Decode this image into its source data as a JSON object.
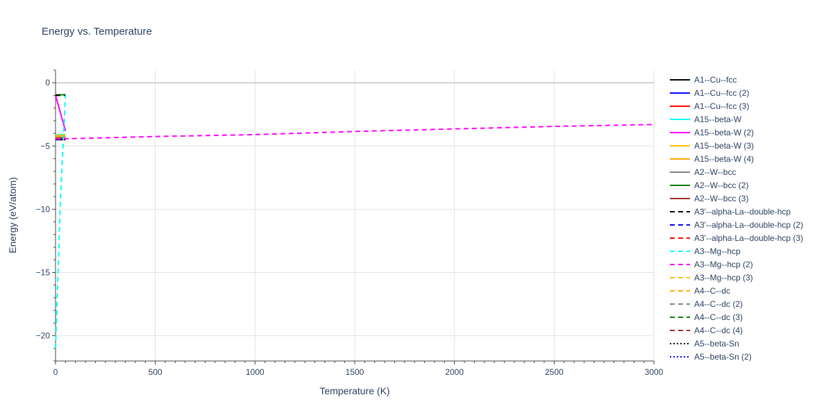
{
  "chart_data": {
    "type": "line",
    "title": "Energy vs. Temperature",
    "xlabel": "Temperature (K)",
    "ylabel": "Energy (eV/atom)",
    "xlim": [
      0,
      3000
    ],
    "ylim": [
      -22,
      1
    ],
    "xticks": [
      0,
      500,
      1000,
      1500,
      2000,
      2500,
      3000
    ],
    "yticks": [
      0,
      -5,
      -10,
      -15,
      -20
    ],
    "grid": true,
    "legend_position": "right",
    "series": [
      {
        "name": "A1--Cu--fcc",
        "color": "#000000",
        "dash": "solid",
        "x": [
          0,
          50
        ],
        "y": [
          -4.5,
          -4.5
        ]
      },
      {
        "name": "A1--Cu--fcc (2)",
        "color": "#0000ff",
        "dash": "solid",
        "x": [
          0,
          50
        ],
        "y": [
          -4.3,
          -4.3
        ]
      },
      {
        "name": "A1--Cu--fcc (3)",
        "color": "#ff0000",
        "dash": "solid",
        "x": [
          0,
          50
        ],
        "y": [
          -4.2,
          -4.2
        ]
      },
      {
        "name": "A15--beta-W",
        "color": "#00ffff",
        "dash": "solid",
        "x": [
          0,
          50
        ],
        "y": [
          -4.1,
          -4.1
        ]
      },
      {
        "name": "A15--beta-W (2)",
        "color": "#ff00ff",
        "dash": "solid",
        "x": [
          0,
          50
        ],
        "y": [
          -1.0,
          -3.8
        ]
      },
      {
        "name": "A15--beta-W (3)",
        "color": "#ffbf00",
        "dash": "solid",
        "x": [
          0,
          50
        ],
        "y": [
          -4.15,
          -4.15
        ]
      },
      {
        "name": "A15--beta-W (4)",
        "color": "#ffa500",
        "dash": "solid",
        "x": [
          0,
          50
        ],
        "y": [
          -4.25,
          -4.25
        ]
      },
      {
        "name": "A2--W--bcc",
        "color": "#808080",
        "dash": "solid",
        "x": [
          0,
          50
        ],
        "y": [
          -4.35,
          -4.35
        ]
      },
      {
        "name": "A2--W--bcc (2)",
        "color": "#008000",
        "dash": "solid",
        "x": [
          0,
          50
        ],
        "y": [
          -0.95,
          -0.95
        ]
      },
      {
        "name": "A2--W--bcc (3)",
        "color": "#a52a2a",
        "dash": "solid",
        "x": [
          0,
          50
        ],
        "y": [
          -4.4,
          -4.4
        ]
      },
      {
        "name": "A3'--alpha-La--double-hcp",
        "color": "#000000",
        "dash": "dash",
        "x": [
          0,
          50
        ],
        "y": [
          -1.0,
          -1.0
        ]
      },
      {
        "name": "A3'--alpha-La--double-hcp (2)",
        "color": "#0000ff",
        "dash": "dash",
        "x": [],
        "y": []
      },
      {
        "name": "A3'--alpha-La--double-hcp (3)",
        "color": "#ff0000",
        "dash": "dash",
        "x": [],
        "y": []
      },
      {
        "name": "A3--Mg--hcp",
        "color": "#00ffff",
        "dash": "dash",
        "x": [
          0,
          25,
          50
        ],
        "y": [
          -21.0,
          -9.0,
          -1.0
        ]
      },
      {
        "name": "A3--Mg--hcp (2)",
        "color": "#ff00ff",
        "dash": "dash",
        "x": [
          0,
          500,
          1000,
          1500,
          2000,
          2500,
          3000
        ],
        "y": [
          -4.45,
          -4.25,
          -4.1,
          -3.85,
          -3.65,
          -3.45,
          -3.3
        ]
      },
      {
        "name": "A3--Mg--hcp (3)",
        "color": "#ffbf00",
        "dash": "dash",
        "x": [],
        "y": []
      },
      {
        "name": "A4--C--dc",
        "color": "#ffa500",
        "dash": "dash",
        "x": [],
        "y": []
      },
      {
        "name": "A4--C--dc (2)",
        "color": "#808080",
        "dash": "dash",
        "x": [],
        "y": []
      },
      {
        "name": "A4--C--dc (3)",
        "color": "#008000",
        "dash": "dash",
        "x": [],
        "y": []
      },
      {
        "name": "A4--C--dc (4)",
        "color": "#a52a2a",
        "dash": "dash",
        "x": [],
        "y": []
      },
      {
        "name": "A5--beta-Sn",
        "color": "#000000",
        "dash": "dot",
        "x": [],
        "y": []
      },
      {
        "name": "A5--beta-Sn (2)",
        "color": "#0000ff",
        "dash": "dot",
        "x": [],
        "y": []
      }
    ]
  }
}
